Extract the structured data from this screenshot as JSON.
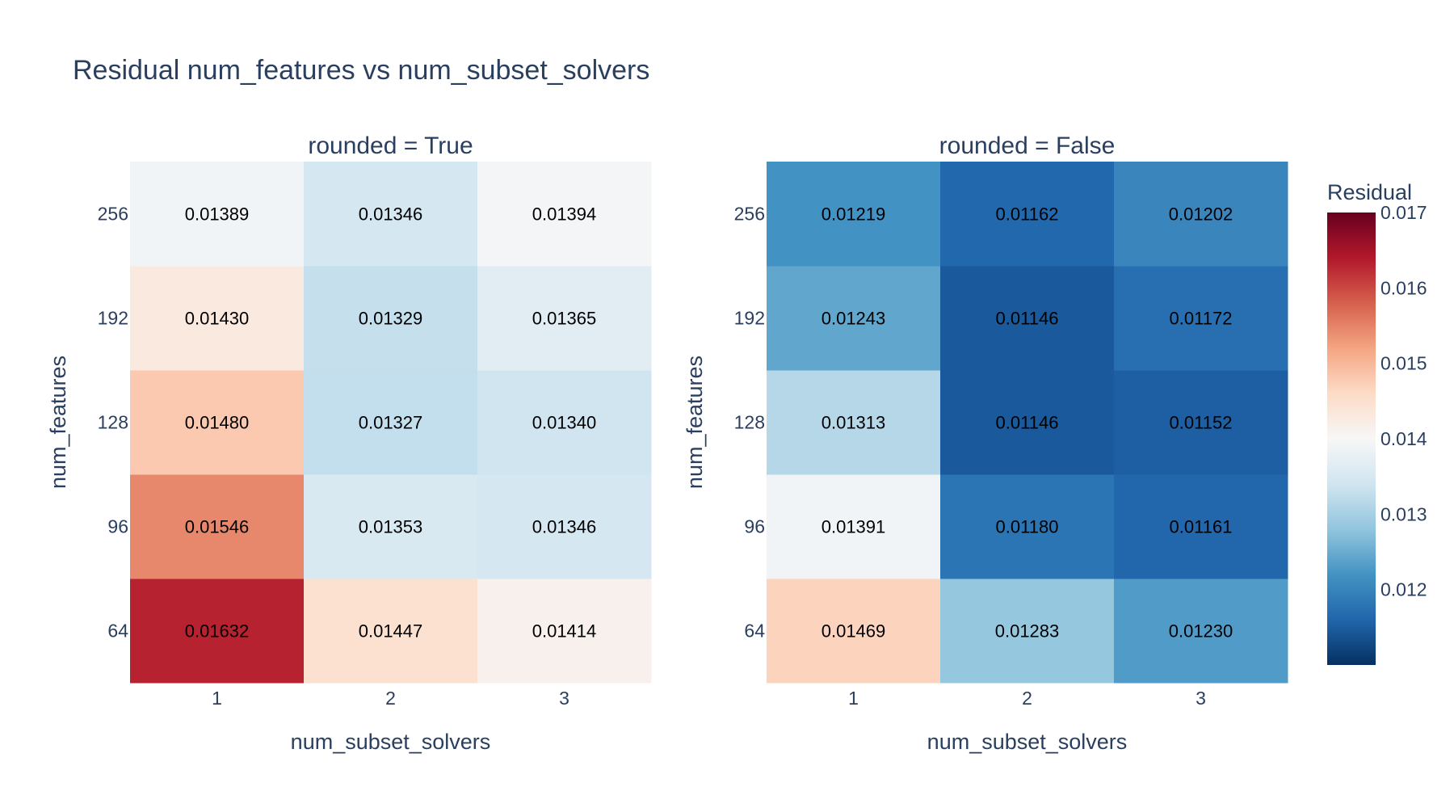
{
  "chart_data": {
    "type": "heatmap",
    "title": "Residual num_features vs num_subset_solvers",
    "xlabel": "num_subset_solvers",
    "ylabel": "num_features",
    "x": [
      "1",
      "2",
      "3"
    ],
    "y": [
      "64",
      "96",
      "128",
      "192",
      "256"
    ],
    "colorscale": "RdBu reversed",
    "colorbar": {
      "title": "Residual",
      "range": [
        0.011,
        0.017
      ],
      "ticks": [
        "0.017",
        "0.016",
        "0.015",
        "0.014",
        "0.013",
        "0.012"
      ],
      "tick_values": [
        0.017,
        0.016,
        0.015,
        0.014,
        0.013,
        0.012
      ]
    },
    "panels": [
      {
        "subtitle": "rounded = True",
        "z": [
          [
            "0.01632",
            "0.01447",
            "0.01414"
          ],
          [
            "0.01546",
            "0.01353",
            "0.01346"
          ],
          [
            "0.01480",
            "0.01327",
            "0.01340"
          ],
          [
            "0.01430",
            "0.01329",
            "0.01365"
          ],
          [
            "0.01389",
            "0.01346",
            "0.01394"
          ]
        ]
      },
      {
        "subtitle": "rounded = False",
        "z": [
          [
            "0.01469",
            "0.01283",
            "0.01230"
          ],
          [
            "0.01391",
            "0.01180",
            "0.01161"
          ],
          [
            "0.01313",
            "0.01146",
            "0.01152"
          ],
          [
            "0.01243",
            "0.01146",
            "0.01172"
          ],
          [
            "0.01219",
            "0.01162",
            "0.01202"
          ]
        ]
      }
    ]
  }
}
